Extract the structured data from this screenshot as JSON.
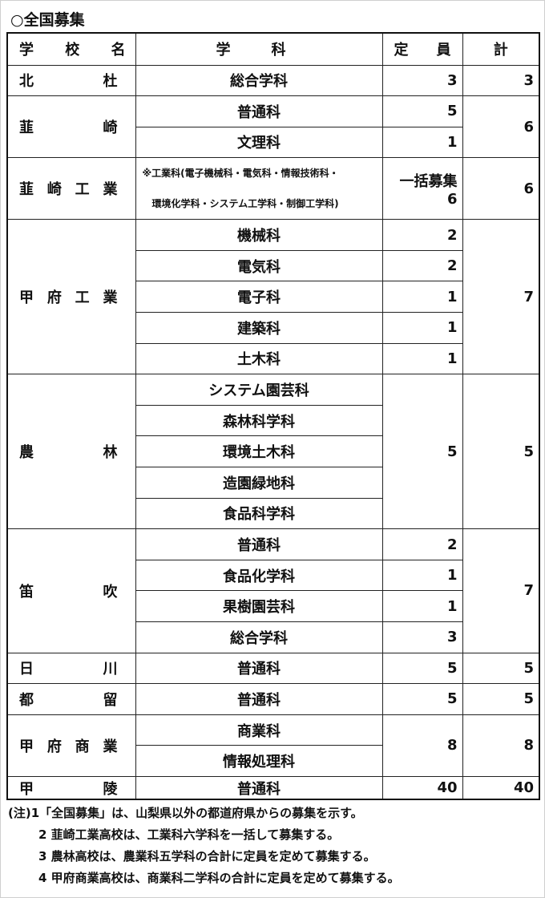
{
  "title": "○全国募集",
  "headers": {
    "school": "学校名",
    "department": "学科",
    "capacity": "定員",
    "total": "計"
  },
  "schools": [
    {
      "name": "北杜",
      "departments": [
        {
          "name": "総合学科",
          "capacity": "3"
        }
      ],
      "total": "3"
    },
    {
      "name": "韮崎",
      "departments": [
        {
          "name": "普通科",
          "capacity": "5"
        },
        {
          "name": "文理科",
          "capacity": "1"
        }
      ],
      "total": "6"
    },
    {
      "name": "韮崎工業",
      "departments": [
        {
          "name": "※工業科(電子機械科・電気科・情報技術科・",
          "name2": "環境化学科・システム工学科・制御工学科)",
          "capacity": "一括募集 6"
        }
      ],
      "total": "6"
    },
    {
      "name": "甲府工業",
      "departments": [
        {
          "name": "機械科",
          "capacity": "2"
        },
        {
          "name": "電気科",
          "capacity": "2"
        },
        {
          "name": "電子科",
          "capacity": "1"
        },
        {
          "name": "建築科",
          "capacity": "1"
        },
        {
          "name": "土木科",
          "capacity": "1"
        }
      ],
      "total": "7"
    },
    {
      "name": "農林",
      "departments": [
        {
          "name": "システム園芸科"
        },
        {
          "name": "森林科学科"
        },
        {
          "name": "環境土木科"
        },
        {
          "name": "造園緑地科"
        },
        {
          "name": "食品科学科"
        }
      ],
      "merged_capacity": "5",
      "total": "5"
    },
    {
      "name": "笛吹",
      "departments": [
        {
          "name": "普通科",
          "capacity": "2"
        },
        {
          "name": "食品化学科",
          "capacity": "1"
        },
        {
          "name": "果樹園芸科",
          "capacity": "1"
        },
        {
          "name": "総合学科",
          "capacity": "3"
        }
      ],
      "total": "7"
    },
    {
      "name": "日川",
      "departments": [
        {
          "name": "普通科",
          "capacity": "5"
        }
      ],
      "total": "5"
    },
    {
      "name": "都留",
      "departments": [
        {
          "name": "普通科",
          "capacity": "5"
        }
      ],
      "total": "5"
    },
    {
      "name": "甲府商業",
      "departments": [
        {
          "name": "商業科"
        },
        {
          "name": "情報処理科"
        }
      ],
      "merged_capacity": "8",
      "total": "8"
    },
    {
      "name": "甲陵",
      "departments": [
        {
          "name": "普通科",
          "capacity": "40"
        }
      ],
      "total": "40"
    }
  ],
  "notes": [
    "(注)1「全国募集」は、山梨県以外の都道府県からの募集を示す。",
    "2 韮崎工業高校は、工業科六学科を一括して募集する。",
    "3 農林高校は、農業科五学科の合計に定員を定めて募集する。",
    "4 甲府商業高校は、商業科二学科の合計に定員を定めて募集する。"
  ]
}
